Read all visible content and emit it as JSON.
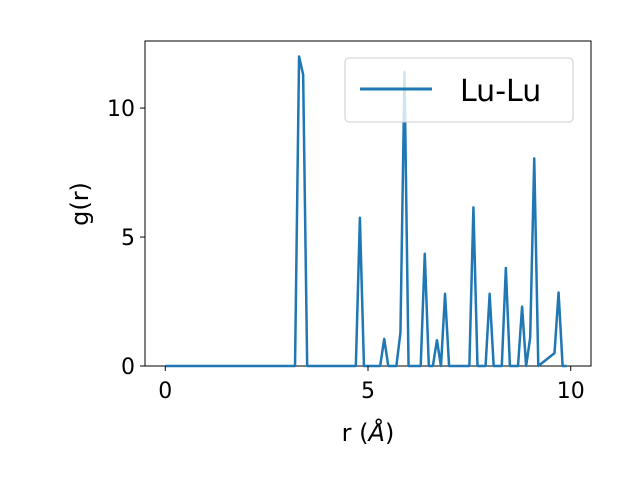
{
  "chart_data": {
    "type": "line",
    "xlabel_prefix": "r (",
    "xlabel_unit": "Å",
    "xlabel_suffix": ")",
    "ylabel": "g(r)",
    "xlim": [
      -0.5,
      10.5
    ],
    "ylim": [
      0,
      12.6
    ],
    "xticks": [
      0,
      5,
      10
    ],
    "yticks": [
      0,
      5,
      10
    ],
    "grid": false,
    "legend_position": "top-right",
    "series": [
      {
        "name": "Lu-Lu",
        "color": "#1f77b4",
        "x": [
          0,
          3.2,
          3.3,
          3.4,
          3.5,
          4.7,
          4.8,
          4.9,
          5.3,
          5.4,
          5.5,
          5.7,
          5.8,
          5.9,
          6.0,
          6.3,
          6.4,
          6.5,
          6.6,
          6.7,
          6.8,
          6.9,
          7.0,
          7.5,
          7.6,
          7.7,
          7.9,
          8.0,
          8.1,
          8.3,
          8.4,
          8.5,
          8.7,
          8.8,
          8.9,
          9.0,
          9.1,
          9.2,
          9.6,
          9.7,
          9.8,
          9.9
        ],
        "y": [
          0,
          0,
          12,
          11.3,
          0,
          0,
          5.75,
          0,
          0,
          1.05,
          0,
          0,
          1.3,
          11.4,
          0,
          0,
          4.35,
          0,
          0,
          1.0,
          0,
          2.8,
          0,
          0,
          6.15,
          0,
          0,
          2.8,
          0,
          0,
          3.8,
          0,
          0,
          2.3,
          0,
          1.1,
          8.05,
          0,
          0.5,
          2.85,
          0,
          0
        ]
      }
    ]
  }
}
